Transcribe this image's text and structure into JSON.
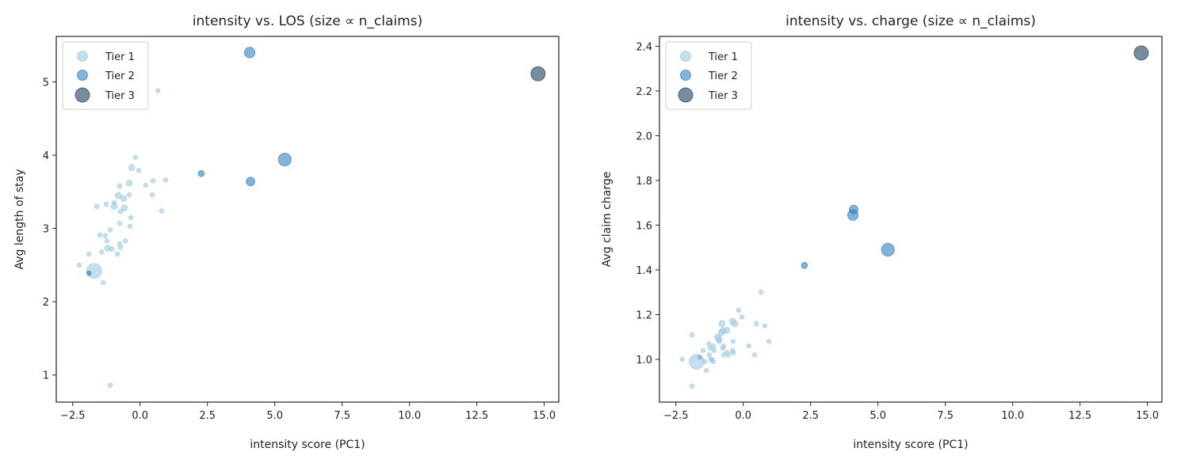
{
  "colors": {
    "tier1": "#9ecae1",
    "tier2": "#3182bd",
    "tier3": "#1f3f5b"
  },
  "chart_data": [
    {
      "type": "scatter",
      "title": "intensity vs. LOS (size ∝ n_claims)",
      "xlabel": "intensity score (PC1)",
      "ylabel": "Avg length of stay",
      "xlim": [
        -3.11,
        15.54
      ],
      "ylim": [
        0.63,
        5.62
      ],
      "xticks": [
        -2.5,
        0.0,
        2.5,
        5.0,
        7.5,
        10.0,
        12.5,
        15.0
      ],
      "xtick_labels": [
        "−2.5",
        "0.0",
        "2.5",
        "5.0",
        "7.5",
        "10.0",
        "12.5",
        "15.0"
      ],
      "yticks": [
        1,
        2,
        3,
        4,
        5
      ],
      "ytick_labels": [
        "1",
        "2",
        "3",
        "4",
        "5"
      ],
      "grid": false,
      "legend": {
        "position": "top-left",
        "entries": [
          "Tier 1",
          "Tier 2",
          "Tier 3"
        ]
      },
      "points": [
        {
          "x": -0.17,
          "y": 3.97,
          "n": 1,
          "tier": 1
        },
        {
          "x": -0.31,
          "y": 3.83,
          "n": 2,
          "tier": 1
        },
        {
          "x": -0.05,
          "y": 3.79,
          "n": 1,
          "tier": 1
        },
        {
          "x": -0.76,
          "y": 3.58,
          "n": 1,
          "tier": 1
        },
        {
          "x": -0.4,
          "y": 3.62,
          "n": 2,
          "tier": 1
        },
        {
          "x": 0.21,
          "y": 3.59,
          "n": 1,
          "tier": 1
        },
        {
          "x": 0.48,
          "y": 3.65,
          "n": 1,
          "tier": 1
        },
        {
          "x": 0.95,
          "y": 3.66,
          "n": 1,
          "tier": 1
        },
        {
          "x": 2.27,
          "y": 3.75,
          "n": 2,
          "tier": 2
        },
        {
          "x": -0.81,
          "y": 3.45,
          "n": 2,
          "tier": 1
        },
        {
          "x": -0.61,
          "y": 3.41,
          "n": 2,
          "tier": 1
        },
        {
          "x": -0.4,
          "y": 3.46,
          "n": 1,
          "tier": 1
        },
        {
          "x": -0.96,
          "y": 3.35,
          "n": 1,
          "tier": 1
        },
        {
          "x": -0.96,
          "y": 3.3,
          "n": 2,
          "tier": 1
        },
        {
          "x": -0.58,
          "y": 3.28,
          "n": 2,
          "tier": 1
        },
        {
          "x": -0.73,
          "y": 3.23,
          "n": 1,
          "tier": 1
        },
        {
          "x": -1.61,
          "y": 3.3,
          "n": 1,
          "tier": 1
        },
        {
          "x": -1.26,
          "y": 3.33,
          "n": 1,
          "tier": 1
        },
        {
          "x": 0.45,
          "y": 3.46,
          "n": 1,
          "tier": 1
        },
        {
          "x": 0.8,
          "y": 3.24,
          "n": 1,
          "tier": 1
        },
        {
          "x": -0.34,
          "y": 3.15,
          "n": 1,
          "tier": 1
        },
        {
          "x": -0.76,
          "y": 3.07,
          "n": 1,
          "tier": 1
        },
        {
          "x": -0.37,
          "y": 3.03,
          "n": 1,
          "tier": 1
        },
        {
          "x": -1.11,
          "y": 2.98,
          "n": 1,
          "tier": 1
        },
        {
          "x": -1.49,
          "y": 2.91,
          "n": 1,
          "tier": 1
        },
        {
          "x": -1.29,
          "y": 2.9,
          "n": 1,
          "tier": 1
        },
        {
          "x": -1.23,
          "y": 2.83,
          "n": 1,
          "tier": 1
        },
        {
          "x": -0.55,
          "y": 2.83,
          "n": 1,
          "tier": 1
        },
        {
          "x": -0.76,
          "y": 2.79,
          "n": 1,
          "tier": 1
        },
        {
          "x": -0.73,
          "y": 2.74,
          "n": 1,
          "tier": 1
        },
        {
          "x": -1.2,
          "y": 2.73,
          "n": 2,
          "tier": 1
        },
        {
          "x": -1.05,
          "y": 2.72,
          "n": 1,
          "tier": 1
        },
        {
          "x": -1.43,
          "y": 2.68,
          "n": 1,
          "tier": 1
        },
        {
          "x": -0.84,
          "y": 2.65,
          "n": 1,
          "tier": 1
        },
        {
          "x": -1.9,
          "y": 2.65,
          "n": 1,
          "tier": 1
        },
        {
          "x": -2.26,
          "y": 2.5,
          "n": 1,
          "tier": 1
        },
        {
          "x": -1.7,
          "y": 2.42,
          "n": 12,
          "tier": 1
        },
        {
          "x": -1.9,
          "y": 2.39,
          "n": 1,
          "tier": 2
        },
        {
          "x": -1.37,
          "y": 2.26,
          "n": 1,
          "tier": 1
        },
        {
          "x": -1.11,
          "y": 0.86,
          "n": 1,
          "tier": 1
        },
        {
          "x": 0.66,
          "y": 4.88,
          "n": 1,
          "tier": 1
        },
        {
          "x": 4.07,
          "y": 5.4,
          "n": 6,
          "tier": 2
        },
        {
          "x": 5.37,
          "y": 3.94,
          "n": 9,
          "tier": 2
        },
        {
          "x": 4.1,
          "y": 3.64,
          "n": 4,
          "tier": 2
        },
        {
          "x": 14.77,
          "y": 5.11,
          "n": 11,
          "tier": 3
        }
      ]
    },
    {
      "type": "scatter",
      "title": "intensity vs. charge (size ∝ n_claims)",
      "xlabel": "intensity score (PC1)",
      "ylabel": "Avg claim charge",
      "xlim": [
        -3.11,
        15.54
      ],
      "ylim": [
        0.809,
        2.444
      ],
      "xticks": [
        -2.5,
        0.0,
        2.5,
        5.0,
        7.5,
        10.0,
        12.5,
        15.0
      ],
      "xtick_labels": [
        "−2.5",
        "0.0",
        "2.5",
        "5.0",
        "7.5",
        "10.0",
        "12.5",
        "15.0"
      ],
      "yticks": [
        1.0,
        1.2,
        1.4,
        1.6,
        1.8,
        2.0,
        2.2,
        2.4
      ],
      "ytick_labels": [
        "1.0",
        "1.2",
        "1.4",
        "1.6",
        "1.8",
        "2.0",
        "2.2",
        "2.4"
      ],
      "grid": false,
      "legend": {
        "position": "top-left",
        "entries": [
          "Tier 1",
          "Tier 2",
          "Tier 3"
        ]
      },
      "points": [
        {
          "x": 0.66,
          "y": 1.3,
          "n": 1,
          "tier": 1
        },
        {
          "x": -0.17,
          "y": 1.22,
          "n": 1,
          "tier": 1
        },
        {
          "x": -0.05,
          "y": 1.19,
          "n": 1,
          "tier": 1
        },
        {
          "x": -0.79,
          "y": 1.16,
          "n": 2,
          "tier": 1
        },
        {
          "x": -0.4,
          "y": 1.17,
          "n": 2,
          "tier": 1
        },
        {
          "x": -0.31,
          "y": 1.16,
          "n": 2,
          "tier": 1
        },
        {
          "x": 0.48,
          "y": 1.16,
          "n": 1,
          "tier": 1
        },
        {
          "x": 0.8,
          "y": 1.15,
          "n": 1,
          "tier": 1
        },
        {
          "x": -1.9,
          "y": 1.11,
          "n": 1,
          "tier": 1
        },
        {
          "x": -0.76,
          "y": 1.13,
          "n": 2,
          "tier": 1
        },
        {
          "x": -0.61,
          "y": 1.13,
          "n": 2,
          "tier": 1
        },
        {
          "x": -0.81,
          "y": 1.12,
          "n": 2,
          "tier": 1
        },
        {
          "x": -0.96,
          "y": 1.1,
          "n": 2,
          "tier": 1
        },
        {
          "x": -0.9,
          "y": 1.09,
          "n": 2,
          "tier": 1
        },
        {
          "x": -0.37,
          "y": 1.08,
          "n": 1,
          "tier": 1
        },
        {
          "x": 0.95,
          "y": 1.08,
          "n": 1,
          "tier": 1
        },
        {
          "x": -0.9,
          "y": 1.08,
          "n": 1,
          "tier": 1
        },
        {
          "x": -1.28,
          "y": 1.07,
          "n": 1,
          "tier": 1
        },
        {
          "x": -1.11,
          "y": 1.06,
          "n": 1,
          "tier": 1
        },
        {
          "x": -0.73,
          "y": 1.06,
          "n": 1,
          "tier": 1
        },
        {
          "x": 0.21,
          "y": 1.06,
          "n": 1,
          "tier": 1
        },
        {
          "x": -1.23,
          "y": 1.05,
          "n": 1,
          "tier": 1
        },
        {
          "x": -0.76,
          "y": 1.05,
          "n": 1,
          "tier": 1
        },
        {
          "x": -0.4,
          "y": 1.04,
          "n": 1,
          "tier": 1
        },
        {
          "x": -1.08,
          "y": 1.04,
          "n": 1,
          "tier": 1
        },
        {
          "x": -1.49,
          "y": 1.04,
          "n": 1,
          "tier": 1
        },
        {
          "x": -0.61,
          "y": 1.03,
          "n": 1,
          "tier": 1
        },
        {
          "x": -0.37,
          "y": 1.03,
          "n": 1,
          "tier": 1
        },
        {
          "x": -0.73,
          "y": 1.02,
          "n": 1,
          "tier": 1
        },
        {
          "x": -0.55,
          "y": 1.02,
          "n": 1,
          "tier": 1
        },
        {
          "x": 0.42,
          "y": 1.02,
          "n": 1,
          "tier": 1
        },
        {
          "x": -1.61,
          "y": 1.01,
          "n": 1,
          "tier": 2
        },
        {
          "x": -1.26,
          "y": 1.02,
          "n": 1,
          "tier": 1
        },
        {
          "x": -1.2,
          "y": 1.0,
          "n": 1,
          "tier": 1
        },
        {
          "x": -1.17,
          "y": 1.0,
          "n": 1,
          "tier": 1
        },
        {
          "x": -1.11,
          "y": 0.99,
          "n": 1,
          "tier": 1
        },
        {
          "x": -1.43,
          "y": 0.99,
          "n": 1,
          "tier": 1
        },
        {
          "x": -2.26,
          "y": 1.0,
          "n": 1,
          "tier": 1
        },
        {
          "x": -1.73,
          "y": 0.99,
          "n": 12,
          "tier": 1
        },
        {
          "x": -1.37,
          "y": 0.95,
          "n": 1,
          "tier": 1
        },
        {
          "x": -1.9,
          "y": 0.88,
          "n": 1,
          "tier": 1
        },
        {
          "x": 2.27,
          "y": 1.42,
          "n": 2,
          "tier": 2
        },
        {
          "x": 4.1,
          "y": 1.67,
          "n": 4,
          "tier": 2
        },
        {
          "x": 4.07,
          "y": 1.645,
          "n": 6,
          "tier": 2
        },
        {
          "x": 5.37,
          "y": 1.49,
          "n": 9,
          "tier": 2
        },
        {
          "x": 14.77,
          "y": 2.37,
          "n": 11,
          "tier": 3
        }
      ]
    }
  ]
}
